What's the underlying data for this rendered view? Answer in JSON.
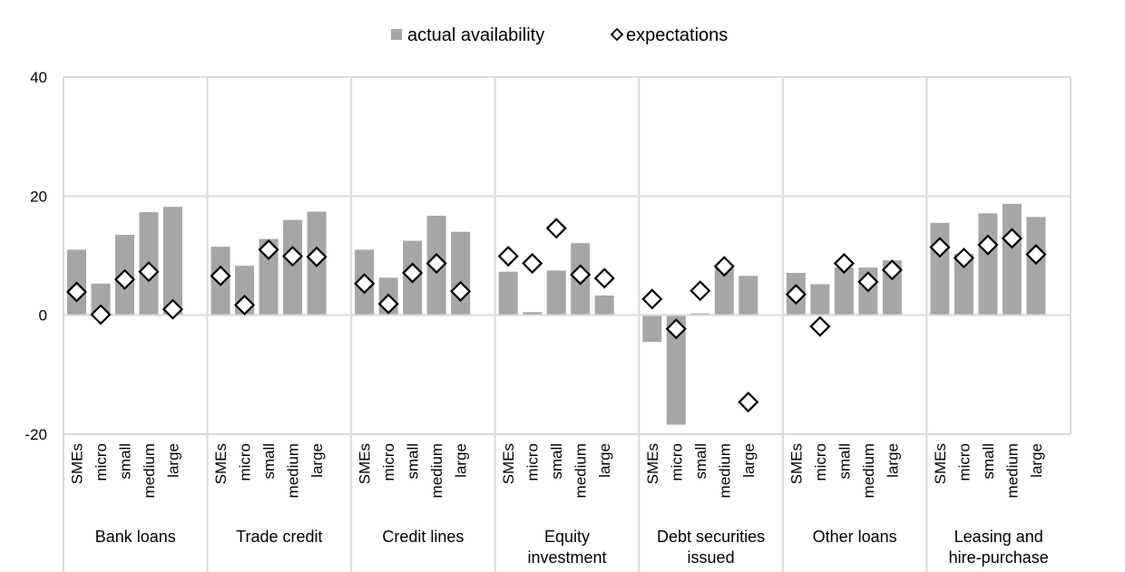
{
  "chart_data": {
    "type": "bar",
    "title": "",
    "xlabel": "",
    "ylabel": "",
    "ylim": [
      -20,
      40
    ],
    "yticks": [
      "-20",
      "0",
      "20",
      "40"
    ],
    "ytick_values": [
      -20,
      0,
      20,
      40
    ],
    "grid": true,
    "legend_position": "top-center",
    "legend": [
      {
        "label": "actual availability",
        "marker": "bar",
        "color": "#a6a6a6"
      },
      {
        "label": "expectations",
        "marker": "diamond",
        "color": "#000000"
      }
    ],
    "size_categories": [
      "SMEs",
      "micro",
      "small",
      "medium",
      "large"
    ],
    "groups": [
      {
        "label_lines": [
          "Bank loans"
        ],
        "actual": [
          11.0,
          5.3,
          13.5,
          17.3,
          18.2
        ],
        "expectations": [
          3.9,
          0.1,
          6.0,
          7.3,
          1.0
        ]
      },
      {
        "label_lines": [
          "Trade credit"
        ],
        "actual": [
          11.5,
          8.3,
          12.8,
          16.0,
          17.4
        ],
        "expectations": [
          6.6,
          1.7,
          11.0,
          9.9,
          9.8
        ]
      },
      {
        "label_lines": [
          "Credit lines"
        ],
        "actual": [
          11.0,
          6.3,
          12.5,
          16.7,
          14.0
        ],
        "expectations": [
          5.3,
          1.9,
          7.1,
          8.7,
          4.0
        ]
      },
      {
        "label_lines": [
          "Equity",
          "investment"
        ],
        "actual": [
          7.3,
          0.5,
          7.5,
          12.1,
          3.3
        ],
        "expectations": [
          9.9,
          8.7,
          14.6,
          6.8,
          6.2
        ]
      },
      {
        "label_lines": [
          "Debt securities",
          "issued"
        ],
        "actual": [
          -4.5,
          -18.4,
          0.3,
          7.8,
          6.6
        ],
        "expectations": [
          2.7,
          -2.3,
          4.1,
          8.2,
          -14.6
        ]
      },
      {
        "label_lines": [
          "Other loans"
        ],
        "actual": [
          7.1,
          5.2,
          8.0,
          8.0,
          9.2
        ],
        "expectations": [
          3.5,
          -1.9,
          8.7,
          5.6,
          7.6
        ]
      },
      {
        "label_lines": [
          "Leasing and",
          "hire-purchase"
        ],
        "actual": [
          15.5,
          10.3,
          17.1,
          18.7,
          16.5
        ],
        "expectations": [
          11.4,
          9.6,
          11.8,
          12.9,
          10.2
        ]
      }
    ]
  }
}
